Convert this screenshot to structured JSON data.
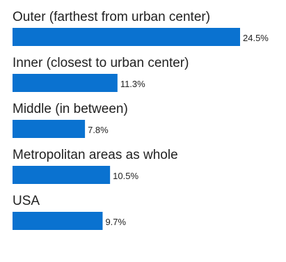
{
  "chart_data": {
    "type": "bar",
    "orientation": "horizontal",
    "title": "",
    "xlabel": "",
    "ylabel": "",
    "categories": [
      "Outer (farthest from urban center)",
      "Inner (closest to urban center)",
      "Middle (in between)",
      "Metropolitan areas as whole",
      "USA"
    ],
    "values": [
      24.5,
      11.3,
      7.8,
      10.5,
      9.7
    ],
    "value_labels": [
      "24.5%",
      "11.3%",
      "7.8%",
      "10.5%",
      "9.7%"
    ],
    "unit": "%",
    "xlim": [
      0,
      24.5
    ],
    "grid": false,
    "legend": "none",
    "bar_color": "#0a72d0"
  }
}
